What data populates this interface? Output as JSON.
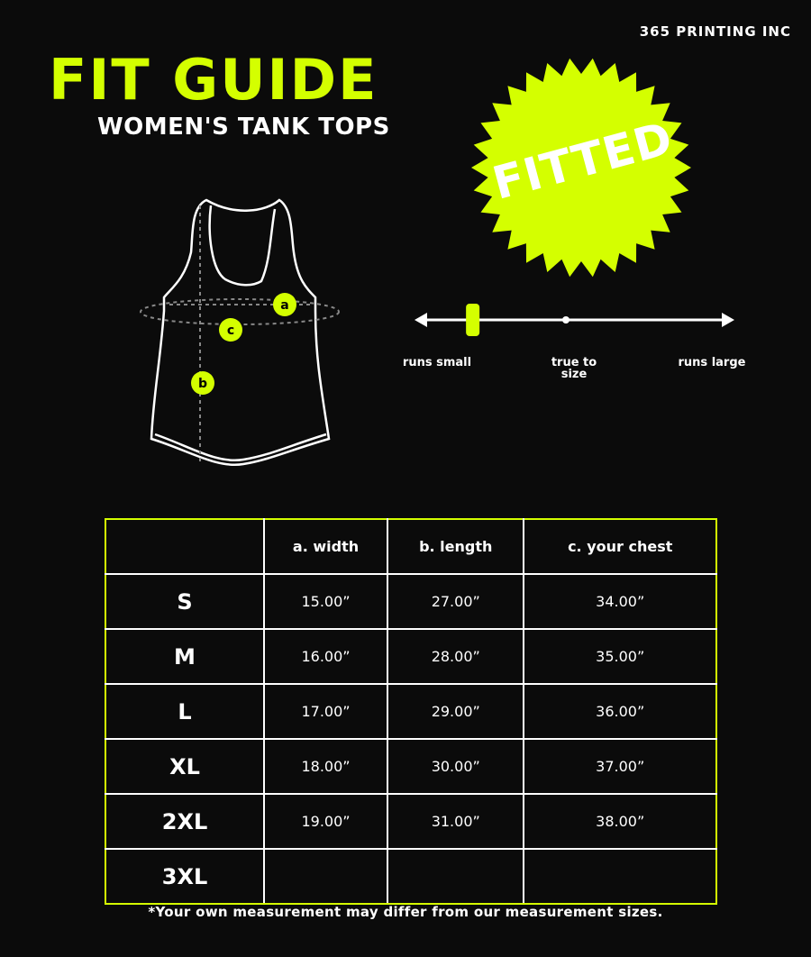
{
  "brand": "365 PRINTING INC",
  "title": "FIT GUIDE",
  "subtitle": "WOMEN'S TANK TOPS",
  "fit_badge": "FITTED",
  "accent_color": "#d4ff00",
  "diagram_markers": {
    "a": "a",
    "b": "b",
    "c": "c"
  },
  "fit_scale": {
    "labels": [
      "runs small",
      "true to size",
      "runs large"
    ],
    "marker_position": 0.17
  },
  "table": {
    "headers": [
      "",
      "a. width",
      "b. length",
      "c. your chest"
    ],
    "rows": [
      {
        "size": "S",
        "width": "15.00”",
        "length": "27.00”",
        "chest": "34.00”"
      },
      {
        "size": "M",
        "width": "16.00”",
        "length": "28.00”",
        "chest": "35.00”"
      },
      {
        "size": "L",
        "width": "17.00”",
        "length": "29.00”",
        "chest": "36.00”"
      },
      {
        "size": "XL",
        "width": "18.00”",
        "length": "30.00”",
        "chest": "37.00”"
      },
      {
        "size": "2XL",
        "width": "19.00”",
        "length": "31.00”",
        "chest": "38.00”"
      },
      {
        "size": "3XL",
        "width": "",
        "length": "",
        "chest": ""
      }
    ]
  },
  "footnote": "*Your own measurement may differ from our measurement sizes."
}
